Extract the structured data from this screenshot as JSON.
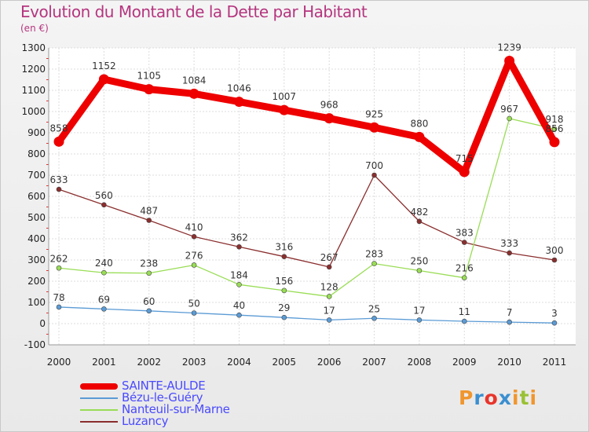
{
  "header": {
    "title": "Evolution du Montant de la Dette par Habitant",
    "unit": "(en €)"
  },
  "logo": {
    "letters": [
      "P",
      "r",
      "o",
      "x",
      "i",
      "t",
      "i"
    ],
    "colors": [
      "#f0962e",
      "#3a8fd0",
      "#e8352b",
      "#3a8fd0",
      "#f0962e",
      "#9ac134",
      "#f0962e"
    ]
  },
  "chart_data": {
    "type": "line",
    "categories": [
      "2000",
      "2001",
      "2002",
      "2003",
      "2004",
      "2005",
      "2006",
      "2007",
      "2008",
      "2009",
      "2010",
      "2011"
    ],
    "ylim": [
      -100,
      1300
    ],
    "yticks": [
      "-100",
      "0",
      "100",
      "200",
      "300",
      "400",
      "500",
      "600",
      "700",
      "800",
      "900",
      "1000",
      "1100",
      "1200",
      "1300"
    ],
    "grid": true,
    "legend_position": "bottom-left",
    "series": [
      {
        "name": "SAINTE-AULDE",
        "color": "#ee0000",
        "values": [
          858,
          1152,
          1105,
          1084,
          1046,
          1007,
          968,
          925,
          880,
          715,
          1239,
          856
        ],
        "labels": [
          "858",
          "1152",
          "1105",
          "1084",
          "1046",
          "1007",
          "968",
          "925",
          "880",
          "715",
          "1239",
          "856"
        ]
      },
      {
        "name": "Bézu-le-Guéry",
        "color": "#5b9bd5",
        "values": [
          78,
          69,
          60,
          50,
          40,
          29,
          17,
          25,
          17,
          11,
          7,
          3
        ],
        "labels": [
          "78",
          "69",
          "60",
          "50",
          "40",
          "29",
          "17",
          "25",
          "17",
          "11",
          "7",
          "3"
        ]
      },
      {
        "name": "Nanteuil-sur-Marne",
        "color": "#99dd55",
        "values": [
          262,
          240,
          238,
          276,
          184,
          156,
          128,
          283,
          250,
          216,
          967,
          918
        ],
        "labels": [
          "262",
          "240",
          "238",
          "276",
          "184",
          "156",
          "128",
          "283",
          "250",
          "216",
          "967",
          "918"
        ]
      },
      {
        "name": "Luzancy",
        "color": "#8b2e2e",
        "values": [
          633,
          560,
          487,
          410,
          362,
          316,
          267,
          700,
          482,
          383,
          333,
          300
        ],
        "labels": [
          "633",
          "560",
          "487",
          "410",
          "362",
          "316",
          "267",
          "700",
          "482",
          "383",
          "333",
          "300"
        ]
      }
    ]
  }
}
